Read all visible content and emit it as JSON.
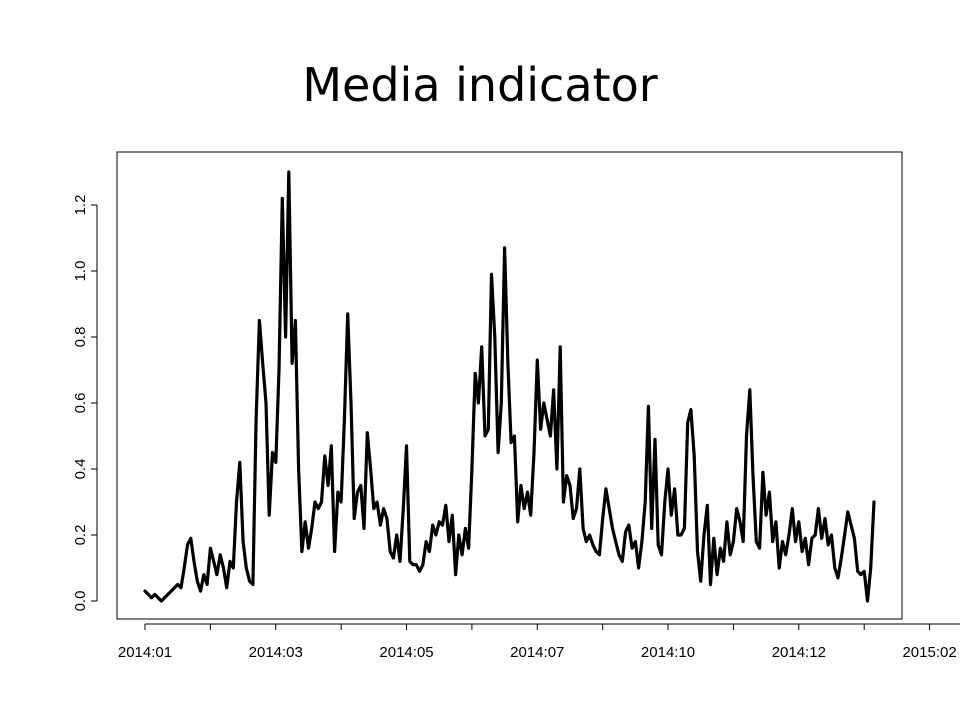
{
  "slide": {
    "title": "Media indicator"
  },
  "chart_data": {
    "type": "line",
    "title": "Media indicator",
    "xlabel": "",
    "ylabel": "",
    "ylim": [
      -0.03,
      1.35
    ],
    "yticks": [
      0.0,
      0.2,
      0.4,
      0.6,
      0.8,
      1.0,
      1.2
    ],
    "ytick_labels": [
      "0.0",
      "0.2",
      "0.4",
      "0.6",
      "0.8",
      "1.0",
      "1.2"
    ],
    "xticks": [
      0,
      20,
      40,
      60,
      80,
      100,
      120,
      140,
      160,
      180,
      200,
      220,
      240,
      260
    ],
    "xtick_labels": [
      "2014:01",
      "",
      "2014:03",
      "",
      "2014:05",
      "",
      "2014:07",
      "",
      "2014:10",
      "",
      "2014:12",
      "",
      "2015:02",
      ""
    ],
    "xlim": [
      -5,
      275
    ],
    "grid": false,
    "series": [
      {
        "values": [
          0.03,
          0.02,
          0.01,
          0.02,
          0.01,
          0.0,
          0.01,
          0.02,
          0.03,
          0.04,
          0.05,
          0.04,
          0.1,
          0.17,
          0.19,
          0.12,
          0.06,
          0.03,
          0.08,
          0.05,
          0.16,
          0.12,
          0.08,
          0.14,
          0.1,
          0.04,
          0.12,
          0.1,
          0.3,
          0.42,
          0.18,
          0.1,
          0.06,
          0.05,
          0.55,
          0.85,
          0.72,
          0.6,
          0.26,
          0.45,
          0.42,
          0.7,
          1.22,
          0.8,
          1.3,
          0.72,
          0.85,
          0.4,
          0.15,
          0.24,
          0.16,
          0.22,
          0.3,
          0.28,
          0.3,
          0.44,
          0.35,
          0.47,
          0.15,
          0.33,
          0.3,
          0.55,
          0.87,
          0.6,
          0.25,
          0.33,
          0.35,
          0.22,
          0.51,
          0.4,
          0.28,
          0.3,
          0.23,
          0.28,
          0.25,
          0.15,
          0.13,
          0.2,
          0.12,
          0.28,
          0.47,
          0.12,
          0.11,
          0.11,
          0.09,
          0.11,
          0.18,
          0.15,
          0.23,
          0.2,
          0.24,
          0.23,
          0.29,
          0.18,
          0.26,
          0.08,
          0.2,
          0.14,
          0.22,
          0.16,
          0.4,
          0.69,
          0.6,
          0.77,
          0.5,
          0.52,
          0.99,
          0.8,
          0.45,
          0.6,
          1.07,
          0.72,
          0.48,
          0.5,
          0.24,
          0.35,
          0.28,
          0.33,
          0.26,
          0.45,
          0.73,
          0.52,
          0.6,
          0.55,
          0.5,
          0.64,
          0.4,
          0.77,
          0.3,
          0.38,
          0.35,
          0.25,
          0.28,
          0.4,
          0.22,
          0.18,
          0.2,
          0.17,
          0.15,
          0.14,
          0.25,
          0.34,
          0.28,
          0.22,
          0.18,
          0.14,
          0.12,
          0.21,
          0.23,
          0.16,
          0.18,
          0.1,
          0.18,
          0.3,
          0.59,
          0.22,
          0.49,
          0.17,
          0.14,
          0.3,
          0.4,
          0.26,
          0.34,
          0.2,
          0.2,
          0.22,
          0.54,
          0.58,
          0.44,
          0.15,
          0.06,
          0.2,
          0.29,
          0.05,
          0.19,
          0.08,
          0.16,
          0.12,
          0.24,
          0.14,
          0.18,
          0.28,
          0.24,
          0.18,
          0.5,
          0.64,
          0.38,
          0.18,
          0.16,
          0.39,
          0.26,
          0.33,
          0.18,
          0.24,
          0.1,
          0.18,
          0.14,
          0.2,
          0.28,
          0.18,
          0.24,
          0.15,
          0.19,
          0.11,
          0.19,
          0.2,
          0.28,
          0.19,
          0.25,
          0.17,
          0.2,
          0.1,
          0.07,
          0.13,
          0.2,
          0.27,
          0.23,
          0.19,
          0.09,
          0.08,
          0.09,
          0.0,
          0.1,
          0.3
        ]
      }
    ]
  }
}
